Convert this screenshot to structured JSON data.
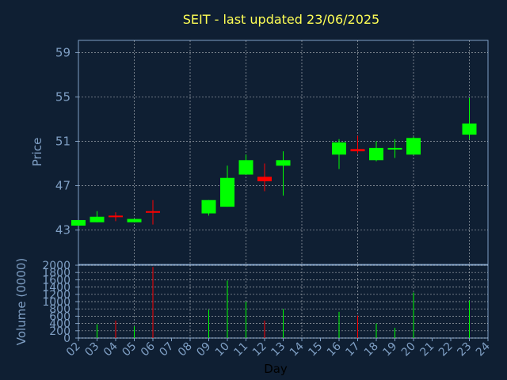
{
  "chart_data": {
    "type": "candlestick",
    "title": "SEIT - last updated 23/06/2025",
    "xlabel": "Day",
    "price_panel": {
      "ylabel": "Price",
      "yticks": [
        "43",
        "47",
        "51",
        "55",
        "59"
      ],
      "ylim": [
        39.9,
        60.1
      ],
      "grid": true
    },
    "volume_panel": {
      "ylabel": "Volume (0000)",
      "yticks": [
        "0",
        "200",
        "400",
        "600",
        "800",
        "1000",
        "1200",
        "1400",
        "1600",
        "1800",
        "2000"
      ],
      "ylim": [
        0,
        2000
      ],
      "grid": true
    },
    "x_ticks": [
      "02",
      "03",
      "04",
      "05",
      "06",
      "07",
      "08",
      "09",
      "10",
      "11",
      "12",
      "13",
      "14",
      "15",
      "16",
      "17",
      "18",
      "19",
      "20",
      "21",
      "22",
      "23",
      "24"
    ],
    "candles": [
      {
        "day": "02",
        "open": 43.4,
        "high": 43.9,
        "low": 43.4,
        "close": 43.9,
        "volume": 0
      },
      {
        "day": "03",
        "open": 43.7,
        "high": 44.7,
        "low": 43.7,
        "close": 44.2,
        "volume": 380
      },
      {
        "day": "04",
        "open": 44.3,
        "high": 44.6,
        "low": 43.8,
        "close": 44.2,
        "volume": 480
      },
      {
        "day": "05",
        "open": 43.7,
        "high": 44.0,
        "low": 43.7,
        "close": 44.0,
        "volume": 320
      },
      {
        "day": "06",
        "open": 44.7,
        "high": 45.7,
        "low": 43.5,
        "close": 44.6,
        "volume": 1950
      },
      {
        "day": "09",
        "open": 44.5,
        "high": 45.7,
        "low": 44.3,
        "close": 45.7,
        "volume": 780
      },
      {
        "day": "10",
        "open": 45.1,
        "high": 48.8,
        "low": 45.1,
        "close": 47.7,
        "volume": 1580
      },
      {
        "day": "11",
        "open": 48.0,
        "high": 49.8,
        "low": 48.0,
        "close": 49.3,
        "volume": 1000
      },
      {
        "day": "12",
        "open": 47.8,
        "high": 49.0,
        "low": 46.5,
        "close": 47.4,
        "volume": 480
      },
      {
        "day": "13",
        "open": 48.8,
        "high": 50.1,
        "low": 46.1,
        "close": 49.3,
        "volume": 800
      },
      {
        "day": "16",
        "open": 49.8,
        "high": 51.2,
        "low": 48.5,
        "close": 50.9,
        "volume": 720
      },
      {
        "day": "17",
        "open": 50.3,
        "high": 51.5,
        "low": 49.9,
        "close": 50.1,
        "volume": 620
      },
      {
        "day": "18",
        "open": 49.3,
        "high": 51.0,
        "low": 49.2,
        "close": 50.4,
        "volume": 400
      },
      {
        "day": "19",
        "open": 50.3,
        "high": 51.2,
        "low": 49.5,
        "close": 50.4,
        "volume": 280
      },
      {
        "day": "20",
        "open": 49.8,
        "high": 51.4,
        "low": 49.8,
        "close": 51.3,
        "volume": 1250
      },
      {
        "day": "23",
        "open": 51.6,
        "high": 54.9,
        "low": 51.2,
        "close": 52.6,
        "volume": 1030
      }
    ],
    "colors": {
      "background": "#0f1f33",
      "up": "#00ff00",
      "down": "#ff0000",
      "axis": "#7f9fc4",
      "title": "#ffff55",
      "grid": "#ffffff"
    }
  }
}
